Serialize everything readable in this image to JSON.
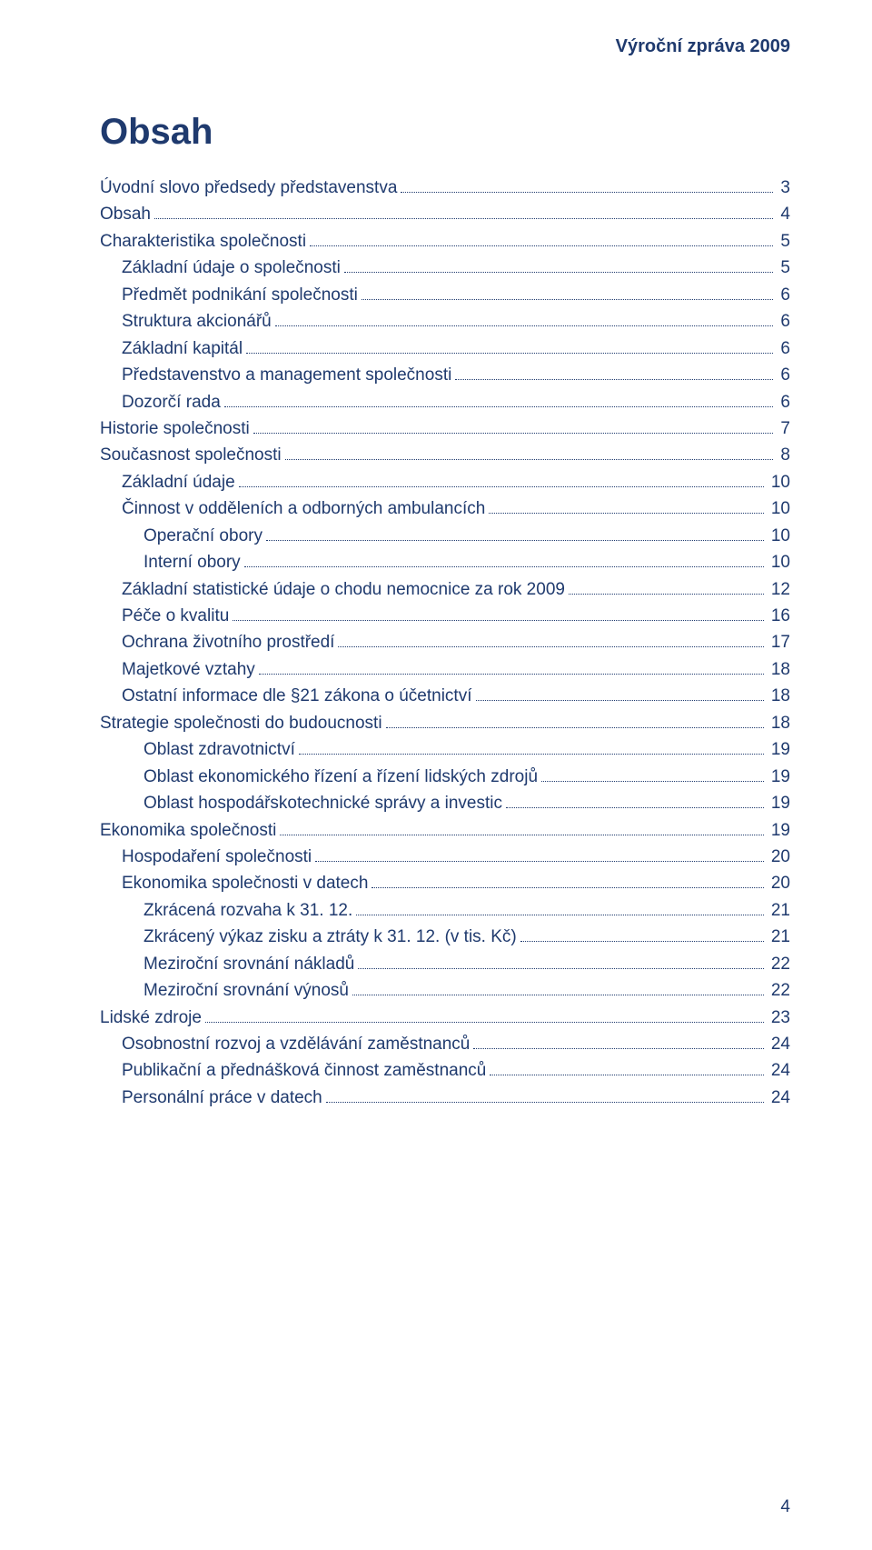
{
  "document": {
    "running_header": "Výroční zpráva 2009",
    "title": "Obsah",
    "page_number": "4",
    "text_color": "#1f3a6e",
    "background_color": "#ffffff",
    "font_family": "Arial",
    "title_fontsize": 40,
    "body_fontsize": 19,
    "header_fontsize": 20
  },
  "toc": {
    "entries": [
      {
        "label": "Úvodní slovo předsedy představenstva",
        "page": "3",
        "indent": 0
      },
      {
        "label": "Obsah",
        "page": "4",
        "indent": 0
      },
      {
        "label": "Charakteristika společnosti",
        "page": "5",
        "indent": 0
      },
      {
        "label": "Základní údaje o společnosti",
        "page": "5",
        "indent": 1
      },
      {
        "label": "Předmět podnikání společnosti",
        "page": "6",
        "indent": 1
      },
      {
        "label": "Struktura akcionářů",
        "page": "6",
        "indent": 1
      },
      {
        "label": "Základní kapitál",
        "page": "6",
        "indent": 1
      },
      {
        "label": "Představenstvo a management společnosti",
        "page": "6",
        "indent": 1
      },
      {
        "label": "Dozorčí rada",
        "page": "6",
        "indent": 1
      },
      {
        "label": "Historie společnosti",
        "page": "7",
        "indent": 0
      },
      {
        "label": "Současnost společnosti",
        "page": "8",
        "indent": 0
      },
      {
        "label": "Základní údaje",
        "page": "10",
        "indent": 1
      },
      {
        "label": "Činnost v odděleních a odborných ambulancích",
        "page": "10",
        "indent": 1
      },
      {
        "label": "Operační obory",
        "page": "10",
        "indent": 2
      },
      {
        "label": "Interní obory",
        "page": "10",
        "indent": 2
      },
      {
        "label": "Základní statistické údaje o chodu nemocnice za rok 2009",
        "page": "12",
        "indent": 1
      },
      {
        "label": "Péče o kvalitu",
        "page": "16",
        "indent": 1
      },
      {
        "label": "Ochrana životního prostředí",
        "page": "17",
        "indent": 1
      },
      {
        "label": "Majetkové vztahy",
        "page": "18",
        "indent": 1
      },
      {
        "label": "Ostatní informace dle §21 zákona o účetnictví",
        "page": "18",
        "indent": 1
      },
      {
        "label": "Strategie společnosti do budoucnosti",
        "page": "18",
        "indent": 0
      },
      {
        "label": "Oblast zdravotnictví",
        "page": "19",
        "indent": 2
      },
      {
        "label": "Oblast ekonomického řízení a řízení lidských zdrojů",
        "page": "19",
        "indent": 2
      },
      {
        "label": "Oblast hospodářskotechnické správy a investic",
        "page": "19",
        "indent": 2
      },
      {
        "label": "Ekonomika společnosti",
        "page": "19",
        "indent": 0
      },
      {
        "label": "Hospodaření společnosti",
        "page": "20",
        "indent": 1
      },
      {
        "label": "Ekonomika společnosti v datech",
        "page": "20",
        "indent": 1
      },
      {
        "label": "Zkrácená rozvaha k 31. 12. ",
        "page": "21",
        "indent": 2
      },
      {
        "label": "Zkrácený výkaz zisku a ztráty k 31. 12. (v tis. Kč)",
        "page": "21",
        "indent": 2
      },
      {
        "label": "Meziroční srovnání nákladů",
        "page": "22",
        "indent": 2
      },
      {
        "label": "Meziroční srovnání výnosů",
        "page": "22",
        "indent": 2
      },
      {
        "label": "Lidské zdroje",
        "page": "23",
        "indent": 0
      },
      {
        "label": "Osobnostní rozvoj a vzdělávání zaměstnanců",
        "page": "24",
        "indent": 1
      },
      {
        "label": "Publikační a přednášková činnost zaměstnanců",
        "page": "24",
        "indent": 1
      },
      {
        "label": "Personální práce v datech",
        "page": "24",
        "indent": 1
      }
    ]
  }
}
